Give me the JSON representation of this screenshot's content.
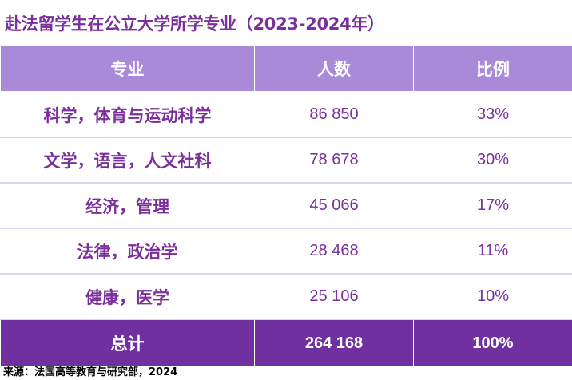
{
  "title": "赴法留学生在公立大学所学专业（2023-2024年）",
  "table": {
    "headers": [
      "专业",
      "人数",
      "比例"
    ],
    "rows": [
      {
        "major": "科学，体育与运动科学",
        "count": "86 850",
        "ratio": "33%"
      },
      {
        "major": "文学，语言，人文社科",
        "count": "78 678",
        "ratio": "30%"
      },
      {
        "major": "经济，管理",
        "count": "45 066",
        "ratio": "17%"
      },
      {
        "major": "法律，政治学",
        "count": "28 468",
        "ratio": "11%"
      },
      {
        "major": "健康，医学",
        "count": "25 106",
        "ratio": "10%"
      }
    ],
    "total": {
      "label": "总计",
      "count": "264 168",
      "ratio": "100%"
    }
  },
  "source": "来源：法国高等教育与研究部，2024",
  "colors": {
    "header_bg": "#a98ad8",
    "total_bg": "#7030a0",
    "text_purple": "#7a2f9b"
  }
}
